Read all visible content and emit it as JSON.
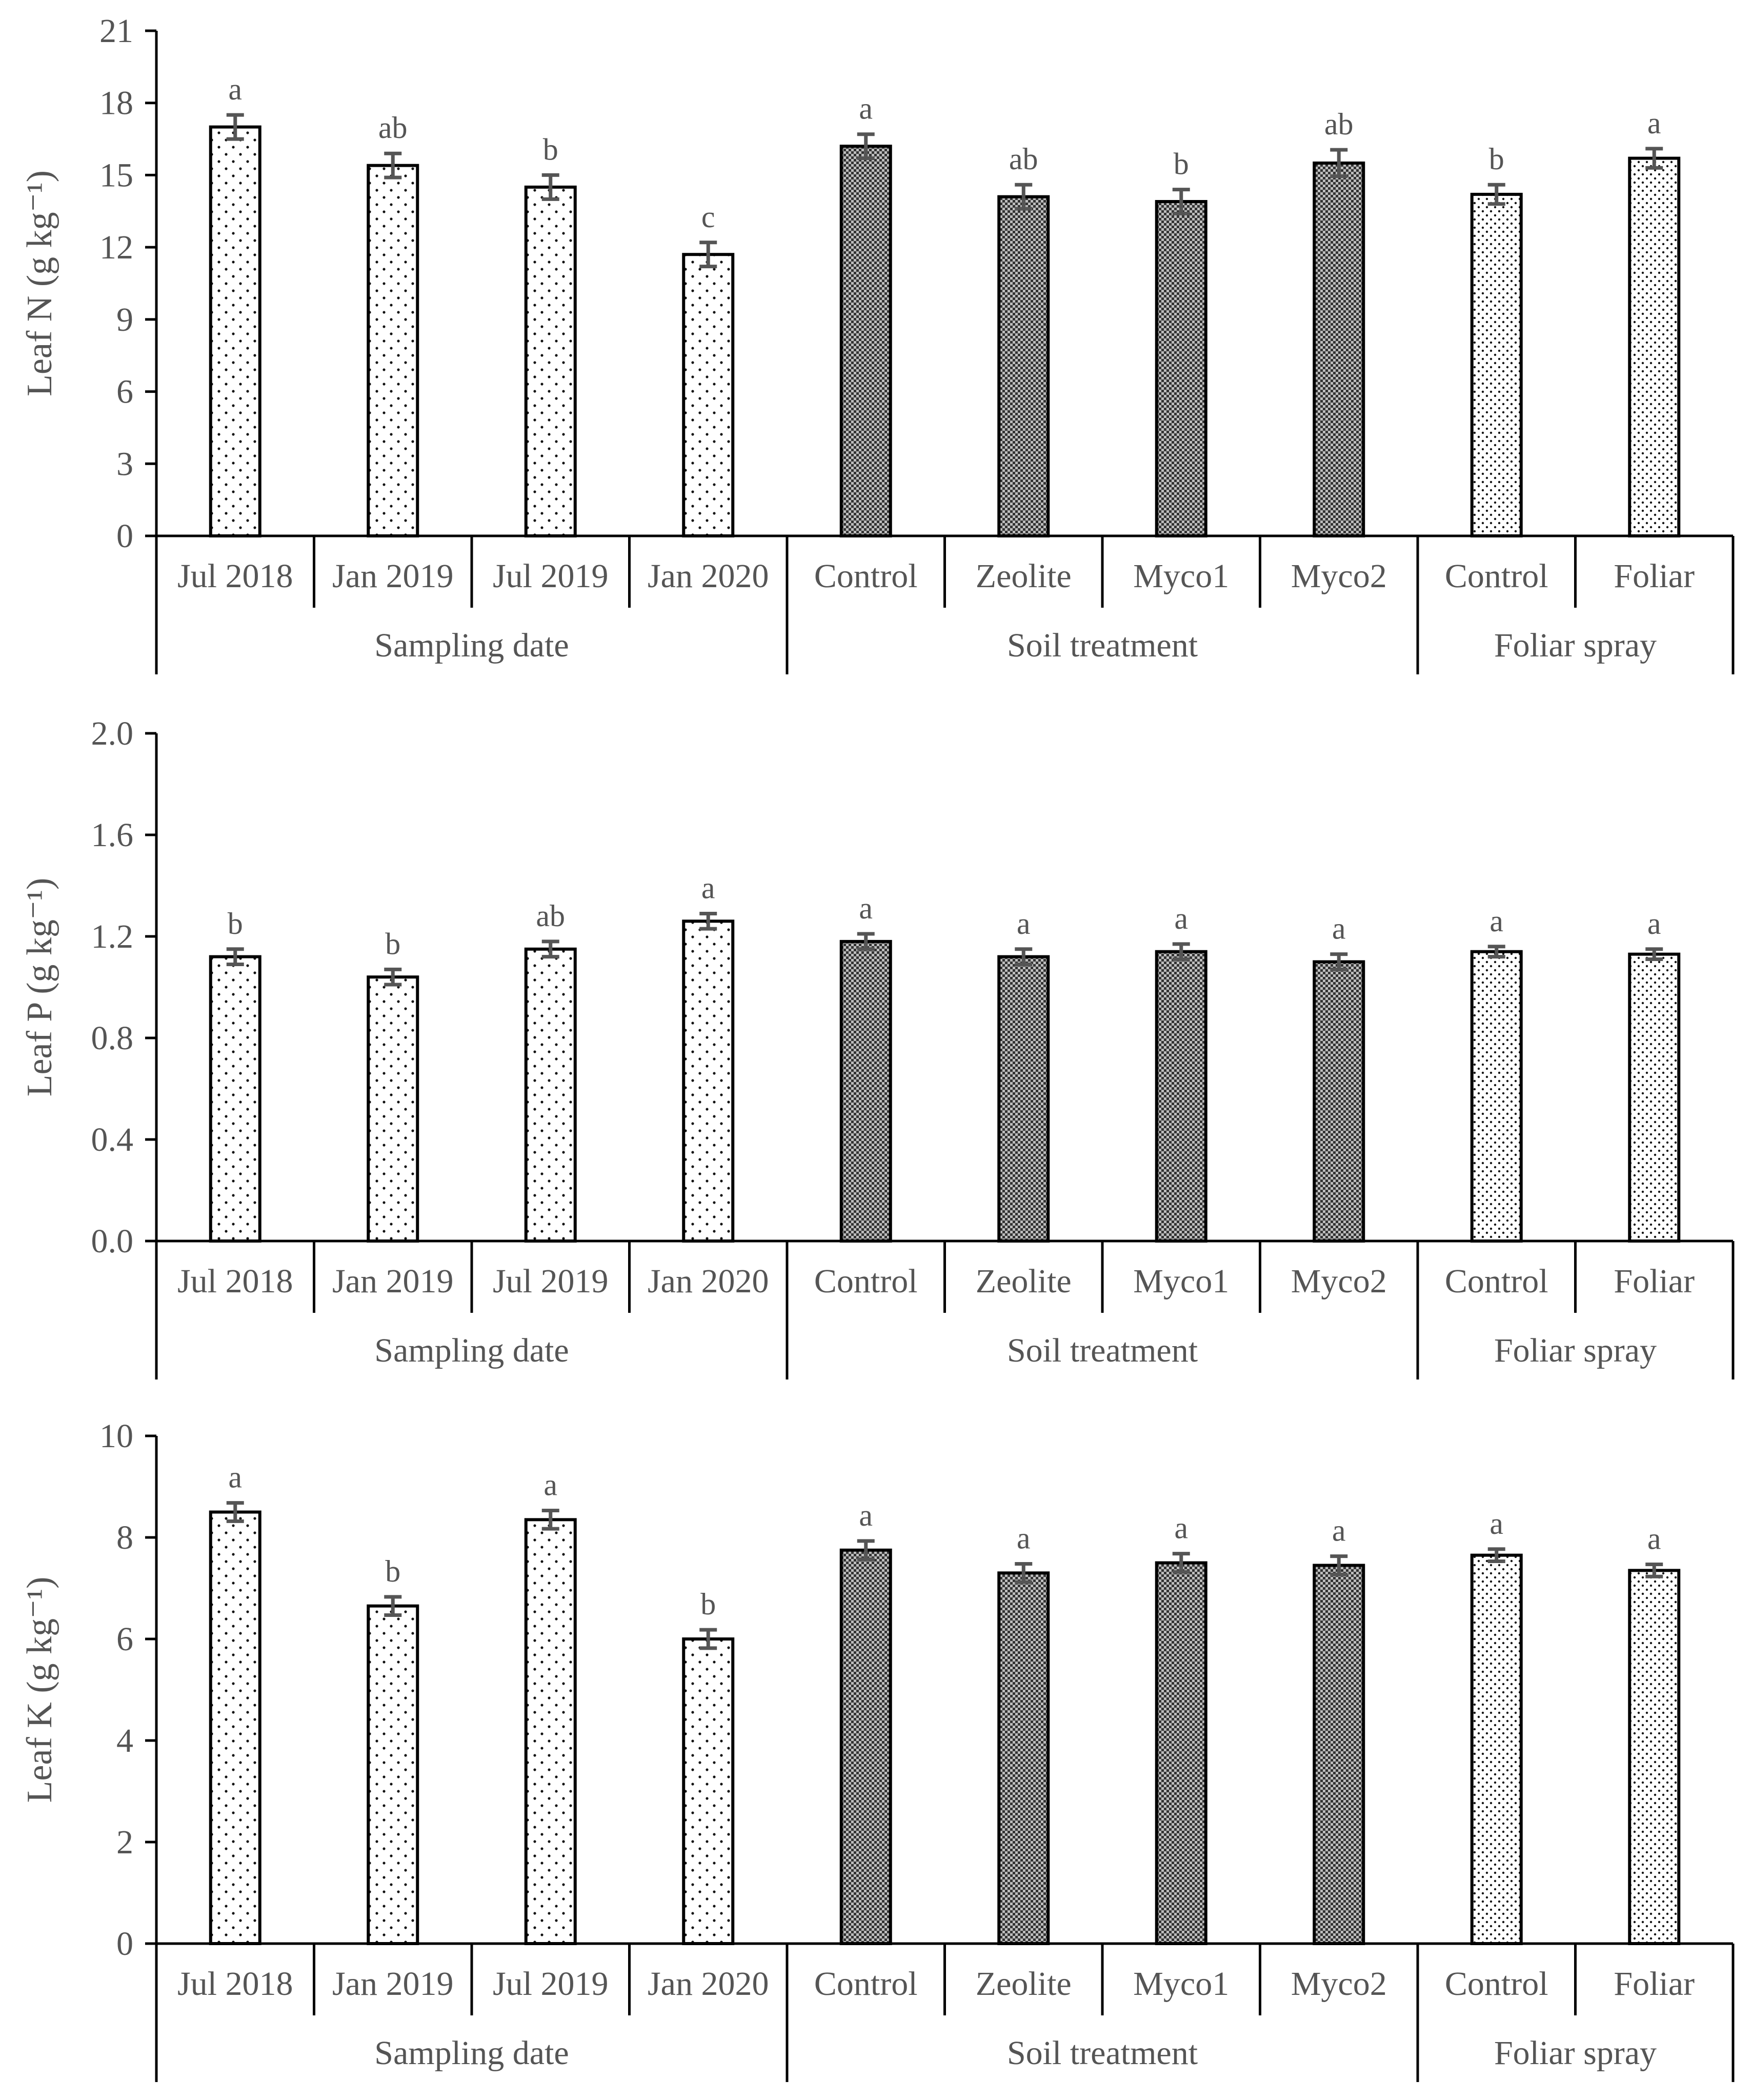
{
  "chart_data": [
    {
      "type": "bar",
      "ylabel": "Leaf N (g kg⁻¹)",
      "ylim": [
        0,
        21
      ],
      "yticks": [
        "0",
        "3",
        "6",
        "9",
        "12",
        "15",
        "18",
        "21"
      ],
      "categories": [
        "Jul 2018",
        "Jan 2019",
        "Jul 2019",
        "Jan 2020",
        "Control",
        "Zeolite",
        "Myco1",
        "Myco2",
        "Control",
        "Foliar"
      ],
      "groups": [
        {
          "label": "Sampling date",
          "count": 4,
          "pattern": "sparse-dots"
        },
        {
          "label": "Soil treatment",
          "count": 4,
          "pattern": "dense-checker"
        },
        {
          "label": "Foliar spray",
          "count": 2,
          "pattern": "medium-dots"
        }
      ],
      "values": [
        17.0,
        15.4,
        14.5,
        11.7,
        16.2,
        14.1,
        13.9,
        15.5,
        14.2,
        15.7
      ],
      "errors": [
        0.5,
        0.5,
        0.5,
        0.5,
        0.5,
        0.5,
        0.5,
        0.55,
        0.4,
        0.4
      ],
      "significance": [
        "a",
        "ab",
        "b",
        "c",
        "a",
        "ab",
        "b",
        "ab",
        "b",
        "a"
      ]
    },
    {
      "type": "bar",
      "ylabel": "Leaf P (g kg⁻¹)",
      "ylim": [
        0,
        2
      ],
      "yticks": [
        "0.0",
        "0.4",
        "0.8",
        "1.2",
        "1.6",
        "2.0"
      ],
      "categories": [
        "Jul 2018",
        "Jan 2019",
        "Jul 2019",
        "Jan 2020",
        "Control",
        "Zeolite",
        "Myco1",
        "Myco2",
        "Control",
        "Foliar"
      ],
      "groups": [
        {
          "label": "Sampling date",
          "count": 4,
          "pattern": "sparse-dots"
        },
        {
          "label": "Soil treatment",
          "count": 4,
          "pattern": "dense-checker"
        },
        {
          "label": "Foliar spray",
          "count": 2,
          "pattern": "medium-dots"
        }
      ],
      "values": [
        1.12,
        1.04,
        1.15,
        1.26,
        1.18,
        1.12,
        1.14,
        1.1,
        1.14,
        1.13
      ],
      "errors": [
        0.03,
        0.03,
        0.03,
        0.03,
        0.03,
        0.03,
        0.03,
        0.03,
        0.02,
        0.02
      ],
      "significance": [
        "b",
        "b",
        "ab",
        "a",
        "a",
        "a",
        "a",
        "a",
        "a",
        "a"
      ]
    },
    {
      "type": "bar",
      "ylabel": "Leaf K (g kg⁻¹)",
      "ylim": [
        0,
        10
      ],
      "yticks": [
        "0",
        "2",
        "4",
        "6",
        "8",
        "10"
      ],
      "categories": [
        "Jul 2018",
        "Jan 2019",
        "Jul 2019",
        "Jan 2020",
        "Control",
        "Zeolite",
        "Myco1",
        "Myco2",
        "Control",
        "Foliar"
      ],
      "groups": [
        {
          "label": "Sampling date",
          "count": 4,
          "pattern": "sparse-dots"
        },
        {
          "label": "Soil treatment",
          "count": 4,
          "pattern": "dense-checker"
        },
        {
          "label": "Foliar spray",
          "count": 2,
          "pattern": "medium-dots"
        }
      ],
      "values": [
        8.5,
        6.65,
        8.35,
        6.0,
        7.75,
        7.3,
        7.5,
        7.45,
        7.65,
        7.35
      ],
      "errors": [
        0.18,
        0.18,
        0.18,
        0.18,
        0.18,
        0.18,
        0.18,
        0.18,
        0.12,
        0.12
      ],
      "significance": [
        "a",
        "b",
        "a",
        "b",
        "a",
        "a",
        "a",
        "a",
        "a",
        "a"
      ]
    }
  ]
}
